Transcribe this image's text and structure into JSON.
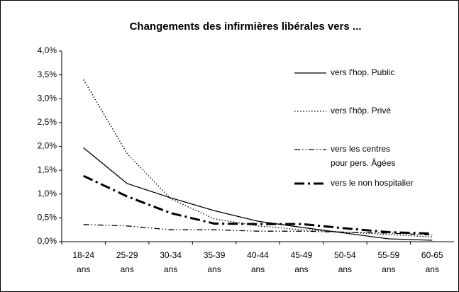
{
  "chart_data": {
    "type": "line",
    "title": "Changements des infirmières libérales vers ...",
    "categories": [
      "18-24 ans",
      "25-29 ans",
      "30-34 ans",
      "35-39 ans",
      "40-44 ans",
      "45-49 ans",
      "50-54 ans",
      "55-59 ans",
      "60-65 ans"
    ],
    "series": [
      {
        "name": "vers l'hop. Public",
        "color": "#000000",
        "line_style": "solid",
        "line_width": 1.3,
        "values": [
          1.97,
          1.22,
          0.92,
          0.65,
          0.43,
          0.3,
          0.18,
          0.06,
          0.03
        ]
      },
      {
        "name": "vers l'hôp. Privé",
        "color": "#000000",
        "line_style": "dotted",
        "line_width": 1.3,
        "values": [
          3.4,
          1.85,
          0.9,
          0.48,
          0.33,
          0.25,
          0.2,
          0.15,
          0.1
        ]
      },
      {
        "name": "vers les centres pour pers. Âgées",
        "color": "#000000",
        "line_style": "dash-dot-dot",
        "line_width": 1.3,
        "values": [
          0.36,
          0.33,
          0.25,
          0.25,
          0.22,
          0.22,
          0.2,
          0.18,
          0.14
        ]
      },
      {
        "name": "vers le non hospitalier",
        "color": "#000000",
        "line_style": "dash-dot",
        "line_width": 3,
        "values": [
          1.38,
          0.95,
          0.6,
          0.38,
          0.37,
          0.37,
          0.28,
          0.2,
          0.17
        ]
      }
    ],
    "ylim": [
      0,
      4
    ],
    "yticks": [
      {
        "value": 0,
        "label": "0,0%"
      },
      {
        "value": 0.5,
        "label": "0,5%"
      },
      {
        "value": 1,
        "label": "1,0%"
      },
      {
        "value": 1.5,
        "label": "1,5%"
      },
      {
        "value": 2,
        "label": "2,0%"
      },
      {
        "value": 2.5,
        "label": "2,5%"
      },
      {
        "value": 3,
        "label": "3,0%"
      },
      {
        "value": 3.5,
        "label": "3,5%"
      },
      {
        "value": 4,
        "label": "4,0%"
      }
    ],
    "grid": false
  }
}
